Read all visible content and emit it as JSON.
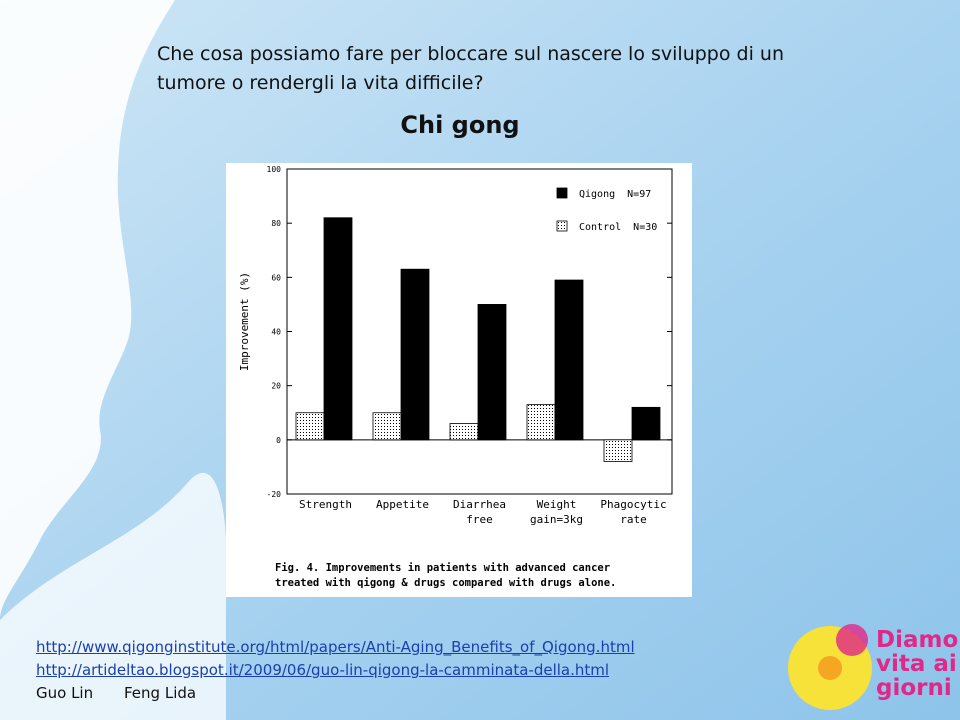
{
  "slide": {
    "question": [
      "Che cosa possiamo fare per bloccare sul nascere lo sviluppo di un",
      "tumore o rendergli la vita difficile?"
    ],
    "heading": "Chi gong",
    "links": [
      "http://www.qigonginstitute.org/html/papers/Anti-Aging_Benefits_of_Qigong.html",
      "http://artideltao.blogspot.it/2009/06/guo-lin-qigong-la-camminata-della.html"
    ],
    "authors": [
      "Guo Lin",
      "Feng Lida"
    ],
    "logo": [
      "Diamo",
      "vita ai",
      "giorni"
    ]
  },
  "chart_data": {
    "type": "bar",
    "y_label": "Improvement (%)",
    "categories": [
      "Strength",
      "Appetite",
      "Diarrhea free",
      "Weight gain=3kg",
      "Phagocytic rate"
    ],
    "series": [
      {
        "name": "Control  N=30",
        "color": "#000000",
        "values": [
          10,
          10,
          6,
          13,
          -8
        ]
      },
      {
        "name": "Qigong  N=97",
        "color": "#000000",
        "values": [
          82,
          63,
          50,
          59,
          12
        ]
      }
    ],
    "ylim": [
      -20,
      100
    ],
    "yticks": [
      -20,
      0,
      20,
      40,
      60,
      80,
      100
    ],
    "caption": [
      "Fig. 4. Improvements in patients with advanced cancer",
      "treated with qigong & drugs compared with drugs alone."
    ]
  }
}
